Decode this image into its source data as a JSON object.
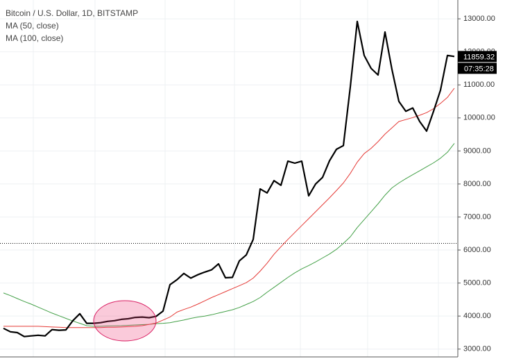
{
  "chart_data": {
    "type": "line",
    "title": "Bitcoin / U.S. Dollar, 1D, BITSTAMP",
    "series": [
      {
        "name": "Bitcoin / U.S. Dollar, 1D, BITSTAMP",
        "color": "#000000",
        "width": 2.2,
        "values": [
          3630,
          3525,
          3500,
          3380,
          3400,
          3420,
          3400,
          3590,
          3570,
          3580,
          3860,
          4070,
          3780,
          3780,
          3800,
          3840,
          3860,
          3900,
          3920,
          3960,
          3970,
          3950,
          3990,
          4150,
          4950,
          5100,
          5290,
          5150,
          5250,
          5330,
          5400,
          5580,
          5160,
          5170,
          5670,
          5850,
          6320,
          7850,
          7730,
          8100,
          7960,
          8690,
          8630,
          8690,
          7640,
          8000,
          8200,
          8700,
          9050,
          9160,
          10940,
          12920,
          11890,
          11500,
          11300,
          12600,
          11470,
          10500,
          10200,
          10300,
          9890,
          9600,
          10200,
          10840,
          11890,
          11860
        ]
      },
      {
        "name": "MA (50, close)",
        "color": "#e53935",
        "width": 1,
        "values": [
          3690,
          3690,
          3690,
          3690,
          3690,
          3690,
          3680,
          3670,
          3660,
          3650,
          3650,
          3650,
          3650,
          3650,
          3650,
          3660,
          3660,
          3670,
          3680,
          3690,
          3710,
          3750,
          3790,
          3880,
          3970,
          4120,
          4200,
          4270,
          4360,
          4460,
          4560,
          4650,
          4740,
          4830,
          4920,
          5010,
          5150,
          5360,
          5600,
          5870,
          6100,
          6320,
          6530,
          6740,
          6950,
          7160,
          7370,
          7580,
          7800,
          8030,
          8320,
          8660,
          8920,
          9080,
          9280,
          9510,
          9700,
          9890,
          9950,
          10010,
          10080,
          10160,
          10280,
          10440,
          10620,
          10900
        ]
      },
      {
        "name": "MA (100, close)",
        "color": "#43a047",
        "width": 1,
        "values": [
          4700,
          4620,
          4530,
          4440,
          4360,
          4270,
          4180,
          4090,
          4010,
          3930,
          3850,
          3780,
          3710,
          3690,
          3690,
          3700,
          3705,
          3710,
          3720,
          3730,
          3740,
          3750,
          3770,
          3780,
          3800,
          3840,
          3880,
          3930,
          3970,
          4000,
          4040,
          4090,
          4140,
          4190,
          4260,
          4350,
          4440,
          4560,
          4720,
          4870,
          5020,
          5170,
          5310,
          5430,
          5530,
          5640,
          5760,
          5880,
          6020,
          6200,
          6400,
          6680,
          6920,
          7160,
          7400,
          7660,
          7880,
          8030,
          8160,
          8280,
          8400,
          8520,
          8640,
          8780,
          8960,
          9230
        ]
      }
    ],
    "ylim": [
      2700,
      13570
    ],
    "yticks": [
      {
        "value": 3000,
        "label": "3000.00"
      },
      {
        "value": 4000,
        "label": "4000.00"
      },
      {
        "value": 5000,
        "label": "5000.00"
      },
      {
        "value": 6000,
        "label": "6000.00"
      },
      {
        "value": 7000,
        "label": "7000.00"
      },
      {
        "value": 8000,
        "label": "8000.00"
      },
      {
        "value": 9000,
        "label": "9000.00"
      },
      {
        "value": 10000,
        "label": "10000.00"
      },
      {
        "value": 11000,
        "label": "11000.00"
      },
      {
        "value": 12000,
        "label": "12000.00"
      },
      {
        "value": 13000,
        "label": "13000.00"
      }
    ],
    "grid": true,
    "hline": 6200,
    "last_price": 11859.32,
    "countdown": "07:35:28"
  }
}
